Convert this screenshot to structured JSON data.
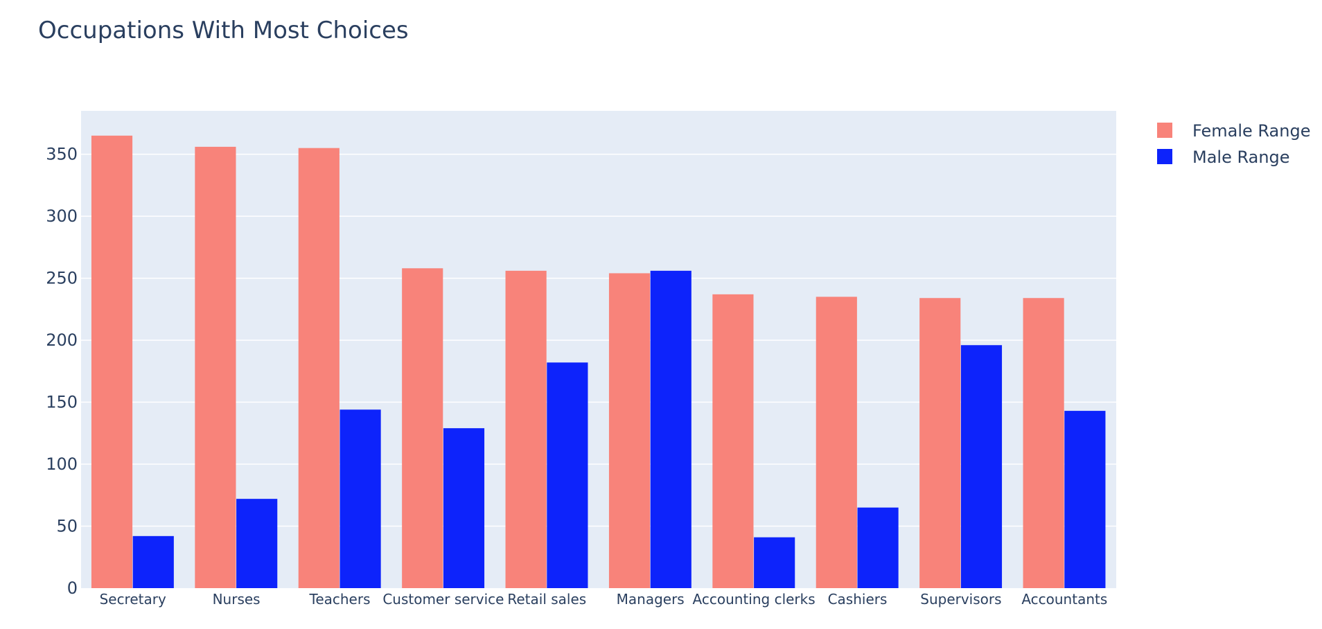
{
  "chart_data": {
    "type": "bar",
    "title": "Occupations With Most Choices",
    "xlabel": "",
    "ylabel": "",
    "categories": [
      "Secretary",
      "Nurses",
      "Teachers",
      "Customer service",
      "Retail sales",
      "Managers",
      "Accounting clerks",
      "Cashiers",
      "Supervisors",
      "Accountants"
    ],
    "series": [
      {
        "name": "Female Range",
        "color": "#f8837a",
        "values": [
          365,
          356,
          355,
          258,
          256,
          254,
          237,
          235,
          234,
          234
        ]
      },
      {
        "name": "Male Range",
        "color": "#0d23fb",
        "values": [
          42,
          72,
          144,
          129,
          182,
          256,
          41,
          65,
          196,
          143
        ]
      }
    ],
    "ylim": [
      0,
      385
    ],
    "yticks": [
      0,
      50,
      100,
      150,
      200,
      250,
      300,
      350
    ],
    "grid": true,
    "legend_position": "top-right",
    "plot_background": "#e5ecf6",
    "text_color": "#2a3f5f"
  }
}
